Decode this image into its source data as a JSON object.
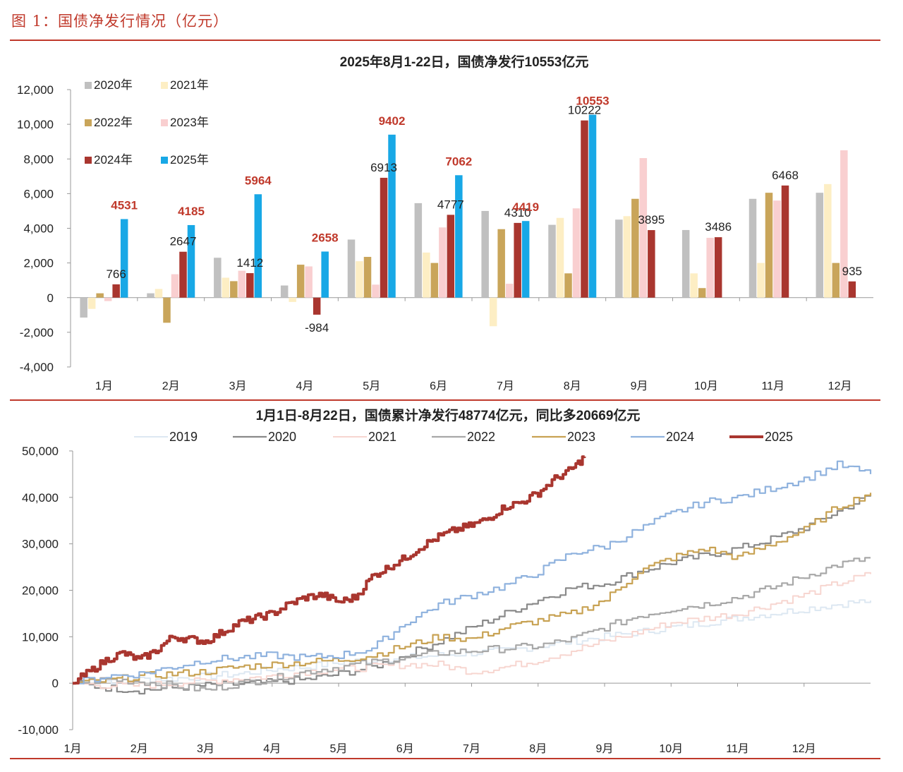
{
  "figure": {
    "title": "图 1：国债净发行情况（亿元）"
  },
  "colors": {
    "accent": "#c0392b",
    "c2020": "#c0c0c0",
    "c2021": "#fdeec4",
    "c2022": "#c9a55a",
    "c2023": "#f9cfd0",
    "c2024": "#a9362f",
    "c2025": "#18a8e6",
    "l2019": "#dde8f2",
    "l2020": "#8a8a8a",
    "l2021": "#f7d6d0",
    "l2022": "#a8a8a8",
    "l2023": "#c8a253",
    "l2024": "#8fb2de",
    "l2025": "#a9362f"
  },
  "chart_data": [
    {
      "type": "bar",
      "title": "2025年8月1-22日，国债净发行10553亿元",
      "categories": [
        "1月",
        "2月",
        "3月",
        "4月",
        "5月",
        "6月",
        "7月",
        "8月",
        "9月",
        "10月",
        "11月",
        "12月"
      ],
      "ylim": [
        -4000,
        12000
      ],
      "yticks": [
        -4000,
        -2000,
        0,
        2000,
        4000,
        6000,
        8000,
        10000,
        12000
      ],
      "ytick_labels": [
        "-4,000",
        "-2,000",
        "0",
        "2,000",
        "4,000",
        "6,000",
        "8,000",
        "10,000",
        "12,000"
      ],
      "legend_placement": "top-left",
      "series": [
        {
          "name": "2020年",
          "color_key": "c2020",
          "values": [
            -1150,
            250,
            2300,
            700,
            3350,
            5450,
            5000,
            4200,
            4500,
            3900,
            5700,
            6050
          ]
        },
        {
          "name": "2021年",
          "color_key": "c2021",
          "values": [
            -650,
            500,
            1150,
            -250,
            2100,
            2600,
            -1650,
            4600,
            4700,
            1400,
            2000,
            6550
          ]
        },
        {
          "name": "2022年",
          "color_key": "c2022",
          "values": [
            250,
            -1450,
            950,
            1900,
            2350,
            2000,
            3950,
            1400,
            5700,
            550,
            6050,
            2000
          ]
        },
        {
          "name": "2023年",
          "color_key": "c2023",
          "values": [
            -200,
            1350,
            1550,
            1800,
            750,
            4050,
            800,
            5150,
            8050,
            3450,
            5600,
            8500
          ]
        },
        {
          "name": "2024年",
          "color_key": "c2024",
          "values": [
            766,
            2647,
            1412,
            -984,
            6913,
            4777,
            4310,
            10222,
            3895,
            3486,
            6468,
            935
          ]
        },
        {
          "name": "2025年",
          "color_key": "c2025",
          "values": [
            4531,
            4185,
            5964,
            2658,
            9402,
            7062,
            4419,
            10553,
            null,
            null,
            null,
            null
          ]
        }
      ],
      "labels_2024": [
        "766",
        "2647",
        "1412",
        "-984",
        "6913",
        "4777",
        "4310",
        "10222",
        "3895",
        "3486",
        "6468",
        "935"
      ],
      "labels_2025": [
        "4531",
        "4185",
        "5964",
        "2658",
        "9402",
        "7062",
        "4419",
        "10553"
      ]
    },
    {
      "type": "line",
      "title": "1月1日-8月22日，国债累计净发行48774亿元，同比多20669亿元",
      "xlim": [
        1,
        13
      ],
      "x_tick_labels": [
        "1月",
        "2月",
        "3月",
        "4月",
        "5月",
        "6月",
        "7月",
        "8月",
        "9月",
        "10月",
        "11月",
        "12月"
      ],
      "ylim": [
        -10000,
        50000
      ],
      "yticks": [
        -10000,
        0,
        10000,
        20000,
        30000,
        40000,
        50000
      ],
      "ytick_labels": [
        "-10,000",
        "0",
        "10,000",
        "20,000",
        "30,000",
        "40,000",
        "50,000"
      ],
      "legend_placement": "top",
      "series": [
        {
          "name": "2019",
          "color_key": "l2019",
          "width": 2.0,
          "points": [
            [
              1,
              0
            ],
            [
              1.5,
              500
            ],
            [
              2,
              800
            ],
            [
              2.5,
              1000
            ],
            [
              3,
              1500
            ],
            [
              3.5,
              2000
            ],
            [
              4,
              3000
            ],
            [
              4.5,
              3500
            ],
            [
              5,
              4500
            ],
            [
              5.5,
              5000
            ],
            [
              6,
              5500
            ],
            [
              6.5,
              6000
            ],
            [
              7,
              6500
            ],
            [
              7.5,
              7000
            ],
            [
              8,
              8000
            ],
            [
              8.5,
              9000
            ],
            [
              9,
              10000
            ],
            [
              9.5,
              11000
            ],
            [
              10,
              12000
            ],
            [
              10.5,
              13000
            ],
            [
              11,
              14000
            ],
            [
              11.5,
              15000
            ],
            [
              12,
              16000
            ],
            [
              12.5,
              17000
            ],
            [
              13,
              17800
            ]
          ]
        },
        {
          "name": "2020",
          "color_key": "l2020",
          "width": 2.2,
          "points": [
            [
              1,
              0
            ],
            [
              1.5,
              -1000
            ],
            [
              2,
              -1500
            ],
            [
              2.5,
              -1000
            ],
            [
              3,
              -500
            ],
            [
              3.5,
              -200
            ],
            [
              4,
              200
            ],
            [
              4.5,
              800
            ],
            [
              5,
              2000
            ],
            [
              5.5,
              3500
            ],
            [
              6,
              6000
            ],
            [
              6.5,
              9000
            ],
            [
              7,
              12000
            ],
            [
              7.5,
              15000
            ],
            [
              8,
              18000
            ],
            [
              8.5,
              20500
            ],
            [
              9,
              21500
            ],
            [
              9.5,
              24000
            ],
            [
              10,
              26000
            ],
            [
              10.5,
              27500
            ],
            [
              11,
              29000
            ],
            [
              11.5,
              31000
            ],
            [
              12,
              33500
            ],
            [
              12.5,
              37000
            ],
            [
              13,
              40500
            ]
          ]
        },
        {
          "name": "2021",
          "color_key": "l2021",
          "width": 2.0,
          "points": [
            [
              1,
              0
            ],
            [
              1.5,
              -500
            ],
            [
              2,
              -500
            ],
            [
              2.5,
              0
            ],
            [
              3,
              500
            ],
            [
              3.5,
              1000
            ],
            [
              4,
              1500
            ],
            [
              4.5,
              2500
            ],
            [
              5,
              3000
            ],
            [
              5.5,
              3500
            ],
            [
              6,
              4000
            ],
            [
              6.5,
              4000
            ],
            [
              7,
              2500
            ],
            [
              7.5,
              3500
            ],
            [
              8,
              5000
            ],
            [
              8.5,
              7000
            ],
            [
              9,
              9000
            ],
            [
              9.5,
              11000
            ],
            [
              10,
              13000
            ],
            [
              10.5,
              14000
            ],
            [
              11,
              15000
            ],
            [
              11.5,
              17000
            ],
            [
              12,
              19000
            ],
            [
              12.5,
              21500
            ],
            [
              13,
              23500
            ]
          ]
        },
        {
          "name": "2022",
          "color_key": "l2022",
          "width": 2.2,
          "points": [
            [
              1,
              0
            ],
            [
              1.5,
              800
            ],
            [
              2,
              400
            ],
            [
              2.5,
              -500
            ],
            [
              3,
              -1500
            ],
            [
              3.5,
              0
            ],
            [
              4,
              1000
            ],
            [
              4.5,
              2500
            ],
            [
              5,
              3500
            ],
            [
              5.5,
              4500
            ],
            [
              6,
              5500
            ],
            [
              6.5,
              6500
            ],
            [
              7,
              7000
            ],
            [
              7.5,
              7500
            ],
            [
              8,
              8000
            ],
            [
              8.5,
              9500
            ],
            [
              9,
              12000
            ],
            [
              9.5,
              14500
            ],
            [
              10,
              16000
            ],
            [
              10.5,
              17000
            ],
            [
              11,
              18500
            ],
            [
              11.5,
              20500
            ],
            [
              12,
              23000
            ],
            [
              12.5,
              25500
            ],
            [
              13,
              27000
            ]
          ]
        },
        {
          "name": "2023",
          "color_key": "l2023",
          "width": 2.2,
          "points": [
            [
              1,
              0
            ],
            [
              1.5,
              500
            ],
            [
              2,
              1500
            ],
            [
              2.5,
              2000
            ],
            [
              3,
              2500
            ],
            [
              3.5,
              3500
            ],
            [
              4,
              4000
            ],
            [
              4.5,
              4500
            ],
            [
              5,
              5000
            ],
            [
              5.5,
              6000
            ],
            [
              6,
              8000
            ],
            [
              6.5,
              10000
            ],
            [
              7,
              9500
            ],
            [
              7.5,
              12000
            ],
            [
              8,
              13500
            ],
            [
              8.5,
              15000
            ],
            [
              9,
              18000
            ],
            [
              9.5,
              24000
            ],
            [
              10,
              27000
            ],
            [
              10.5,
              29000
            ],
            [
              11,
              27000
            ],
            [
              11.5,
              30000
            ],
            [
              12,
              33000
            ],
            [
              12.5,
              38000
            ],
            [
              13,
              41000
            ]
          ]
        },
        {
          "name": "2024",
          "color_key": "l2024",
          "width": 2.2,
          "points": [
            [
              1,
              0
            ],
            [
              1.5,
              1500
            ],
            [
              2,
              2000
            ],
            [
              2.5,
              3500
            ],
            [
              3,
              5000
            ],
            [
              3.5,
              5500
            ],
            [
              4,
              6000
            ],
            [
              4.5,
              5500
            ],
            [
              5,
              6000
            ],
            [
              5.5,
              7500
            ],
            [
              6,
              13000
            ],
            [
              6.5,
              17000
            ],
            [
              7,
              19000
            ],
            [
              7.5,
              21000
            ],
            [
              8,
              24000
            ],
            [
              8.5,
              28000
            ],
            [
              9,
              29500
            ],
            [
              9.5,
              33000
            ],
            [
              10,
              36500
            ],
            [
              10.5,
              39000
            ],
            [
              11,
              40000
            ],
            [
              11.5,
              42000
            ],
            [
              12,
              44000
            ],
            [
              12.5,
              47000
            ],
            [
              13,
              45000
            ]
          ]
        },
        {
          "name": "2025",
          "color_key": "l2025",
          "width": 4.0,
          "points": [
            [
              1,
              0
            ],
            [
              1.25,
              2500
            ],
            [
              1.5,
              5000
            ],
            [
              1.75,
              6500
            ],
            [
              2,
              5000
            ],
            [
              2.25,
              7000
            ],
            [
              2.5,
              10000
            ],
            [
              2.75,
              9500
            ],
            [
              3,
              9000
            ],
            [
              3.25,
              11000
            ],
            [
              3.5,
              13000
            ],
            [
              3.75,
              14000
            ],
            [
              4,
              15000
            ],
            [
              4.25,
              17000
            ],
            [
              4.5,
              18500
            ],
            [
              4.75,
              19000
            ],
            [
              5,
              17500
            ],
            [
              5.25,
              18500
            ],
            [
              5.5,
              23000
            ],
            [
              5.75,
              25000
            ],
            [
              6,
              27000
            ],
            [
              6.25,
              29500
            ],
            [
              6.5,
              31500
            ],
            [
              6.75,
              33000
            ],
            [
              7,
              34000
            ],
            [
              7.25,
              35500
            ],
            [
              7.5,
              38000
            ],
            [
              7.75,
              39000
            ],
            [
              8,
              41000
            ],
            [
              8.25,
              44000
            ],
            [
              8.5,
              46000
            ],
            [
              8.7,
              48774
            ]
          ]
        }
      ]
    }
  ]
}
